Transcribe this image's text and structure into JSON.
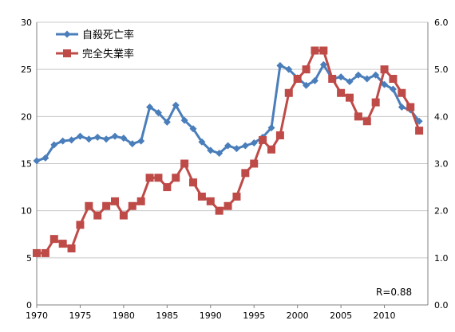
{
  "chart_data": {
    "type": "line",
    "x": [
      1970,
      1971,
      1972,
      1973,
      1974,
      1975,
      1976,
      1977,
      1978,
      1979,
      1980,
      1981,
      1982,
      1983,
      1984,
      1985,
      1986,
      1987,
      1988,
      1989,
      1990,
      1991,
      1992,
      1993,
      1994,
      1995,
      1996,
      1997,
      1998,
      1999,
      2000,
      2001,
      2002,
      2003,
      2004,
      2005,
      2006,
      2007,
      2008,
      2009,
      2010,
      2011,
      2012,
      2013,
      2014
    ],
    "xlim": [
      1970,
      2015
    ],
    "x_ticks": [
      "1970",
      "1975",
      "1980",
      "1985",
      "1990",
      "1995",
      "2000",
      "2005",
      "2010"
    ],
    "y_left": {
      "lim": [
        0,
        30
      ],
      "ticks": [
        "0",
        "5",
        "10",
        "15",
        "20",
        "25",
        "30"
      ]
    },
    "y_right": {
      "lim": [
        0,
        6
      ],
      "ticks": [
        "0.0",
        "1.0",
        "2.0",
        "3.0",
        "4.0",
        "5.0",
        "6.0"
      ]
    },
    "legend_position": "top-left",
    "series": [
      {
        "name": "自殺死亡率",
        "axis": "left",
        "color": "#4a7ebb",
        "marker": "diamond",
        "values": [
          15.3,
          15.6,
          17.0,
          17.4,
          17.5,
          17.9,
          17.6,
          17.8,
          17.6,
          17.9,
          17.7,
          17.1,
          17.4,
          21.0,
          20.4,
          19.4,
          21.2,
          19.6,
          18.7,
          17.3,
          16.4,
          16.1,
          16.9,
          16.6,
          16.9,
          17.2,
          17.8,
          18.8,
          25.4,
          25.0,
          24.1,
          23.3,
          23.8,
          25.5,
          24.0,
          24.2,
          23.7,
          24.4,
          24.0,
          24.4,
          23.4,
          22.9,
          21.0,
          20.7,
          19.5
        ]
      },
      {
        "name": "完全失業率",
        "axis": "right",
        "color": "#be4b48",
        "marker": "square",
        "values": [
          1.1,
          1.1,
          1.4,
          1.3,
          1.2,
          1.7,
          2.1,
          1.9,
          2.1,
          2.2,
          1.9,
          2.1,
          2.2,
          2.7,
          2.7,
          2.5,
          2.7,
          3.0,
          2.6,
          2.3,
          2.2,
          2.0,
          2.1,
          2.3,
          2.8,
          3.0,
          3.5,
          3.3,
          3.6,
          4.5,
          4.8,
          5.0,
          5.4,
          5.4,
          4.8,
          4.5,
          4.4,
          4.0,
          3.9,
          4.3,
          5.0,
          4.8,
          4.5,
          4.2,
          3.7
        ]
      }
    ],
    "annotation": "R=0.88"
  }
}
